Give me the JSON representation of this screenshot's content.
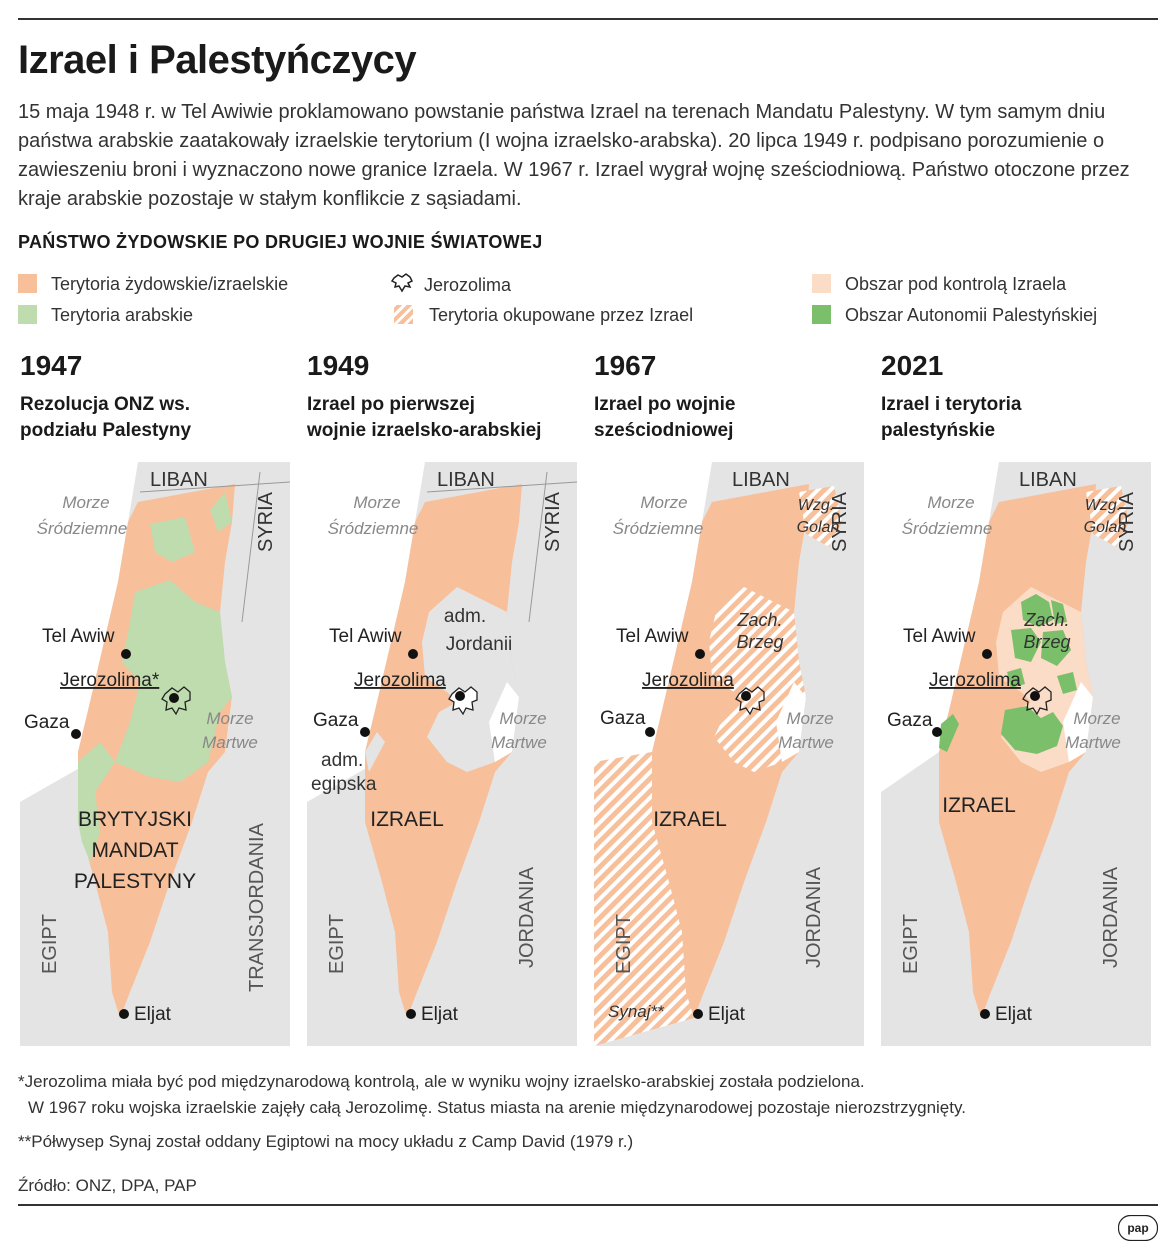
{
  "title": "Izrael i Palestyńczycy",
  "intro": "15 maja 1948 r. w Tel Awiwie proklamowano powstanie państwa Izrael na terenach Mandatu Palestyny. W tym samym dniu państwa arabskie zaatakowały izraelskie terytorium (I wojna izraelsko-arabska). 20 lipca 1949 r. podpisano porozumienie o zawieszeniu broni i wyznaczono nowe granice Izraela. W 1967 r. Izrael wygrał wojnę sześciodniową. Państwo otoczone przez kraje arabskie pozostaje w stałym konflikcie z sąsiadami.",
  "section_heading": "PAŃSTWO ŻYDOWSKIE PO DRUGIEJ WOJNIE ŚWIATOWEJ",
  "legend": [
    {
      "label": "Terytoria żydowskie/izraelskie",
      "color": "#f7bf9a"
    },
    {
      "label": "Terytoria arabskie",
      "color": "#bfdcaf"
    },
    {
      "label": "Jerozolima",
      "icon": "jerusalem-outline-icon"
    },
    {
      "label": "Terytoria okupowane przez Izrael",
      "color": "#f7bf9a",
      "pattern": "hatch"
    },
    {
      "label": "Obszar pod kontrolą Izraela",
      "color": "#fbdcc6"
    },
    {
      "label": "Obszar Autonomii Palestyńskiej",
      "color": "#7cbf6b"
    }
  ],
  "panels": [
    {
      "year": "1947",
      "subtitle": [
        "Rezolucja ONZ ws.",
        "podziału Palestyny"
      ],
      "labels": {
        "liban": "LIBAN",
        "syria": "SYRIA",
        "sea": [
          "Morze",
          "Śródziemne"
        ],
        "tel_awiw": "Tel Awiw",
        "jerozolima": "Jerozolima*",
        "gaza": "Gaza",
        "dead_sea": [
          "Morze",
          "Martwe"
        ],
        "main": [
          "BRYTYJSKI",
          "MANDAT",
          "PALESTYNY"
        ],
        "egipt": "EGIPT",
        "east": "TRANSJORDANIA",
        "eljat": "Eljat"
      }
    },
    {
      "year": "1949",
      "subtitle": [
        "Izrael po pierwszej",
        "wojnie izraelsko-arabskiej"
      ],
      "labels": {
        "liban": "LIBAN",
        "syria": "SYRIA",
        "sea": [
          "Morze",
          "Śródziemne"
        ],
        "tel_awiw": "Tel Awiw",
        "jerozolima": "Jerozolima",
        "gaza": "Gaza",
        "adm_jordanii": [
          "adm.",
          "Jordanii"
        ],
        "adm_egipska": [
          "adm.",
          "egipska"
        ],
        "dead_sea": [
          "Morze",
          "Martwe"
        ],
        "main": [
          "IZRAEL"
        ],
        "egipt": "EGIPT",
        "east": "JORDANIA",
        "eljat": "Eljat"
      }
    },
    {
      "year": "1967",
      "subtitle": [
        "Izrael po wojnie",
        "sześciodniowej"
      ],
      "labels": {
        "liban": "LIBAN",
        "syria": "SYRIA",
        "sea": [
          "Morze",
          "Śródziemne"
        ],
        "golan": [
          "Wzg.",
          "Golan"
        ],
        "west_bank": [
          "Zach.",
          "Brzeg"
        ],
        "tel_awiw": "Tel Awiw",
        "jerozolima": "Jerozolima",
        "gaza": "Gaza",
        "dead_sea": [
          "Morze",
          "Martwe"
        ],
        "main": [
          "IZRAEL"
        ],
        "egipt": "EGIPT",
        "east": "JORDANIA",
        "synaj": "Synaj**",
        "eljat": "Eljat"
      }
    },
    {
      "year": "2021",
      "subtitle": [
        "Izrael i terytoria",
        "palestyńskie"
      ],
      "labels": {
        "liban": "LIBAN",
        "syria": "SYRIA",
        "sea": [
          "Morze",
          "Śródziemne"
        ],
        "golan": [
          "Wzg.",
          "Golan"
        ],
        "west_bank": [
          "Zach.",
          "Brzeg"
        ],
        "tel_awiw": "Tel Awiw",
        "jerozolima": "Jerozolima",
        "gaza": "Gaza",
        "dead_sea": [
          "Morze",
          "Martwe"
        ],
        "main": [
          "IZRAEL"
        ],
        "egipt": "EGIPT",
        "east": "JORDANIA",
        "eljat": "Eljat"
      }
    }
  ],
  "footnotes": [
    "*Jerozolima miała być pod międzynarodową kontrolą, ale w wyniku wojny izraelsko-arabskiej została podzielona.",
    "W 1967 roku wojska izraelskie zajęły całą Jerozolimę. Status miasta na arenie międzynarodowej pozostaje nierozstrzygnięty.",
    "**Półwysep Synaj został oddany Egiptowi na mocy układu z Camp David (1979 r.)"
  ],
  "source": "Źródło: ONZ, DPA, PAP",
  "logo": "pap",
  "colors": {
    "israeli": "#f7bf9a",
    "arab": "#bfdcaf",
    "controlled": "#fbdcc6",
    "autonomy": "#7cbf6b",
    "neighbors": "#e4e4e4",
    "sea": "#ffffff"
  }
}
